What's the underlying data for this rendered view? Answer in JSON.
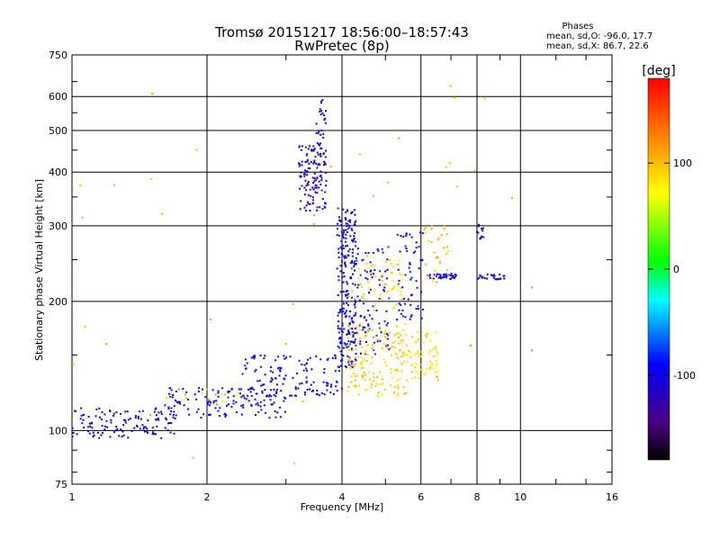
{
  "chart_data": {
    "type": "scatter",
    "title": "Tromsø 20151217 18:56:00–18:57:43",
    "subtitle": "RwPretec (8p)",
    "stats": {
      "heading": "Phases",
      "line_o": "mean, sd,O: -96.0, 17.7",
      "line_x": "mean, sd,X:  86.7, 22.6"
    },
    "xlabel": "Frequency [MHz]",
    "ylabel": "Stationary phase Virtual Height [km]",
    "xscale": "log",
    "yscale": "log",
    "xlim": [
      1,
      16
    ],
    "ylim": [
      75,
      750
    ],
    "x_ticks": [
      1,
      2,
      4,
      6,
      8,
      10,
      16
    ],
    "x_tick_labels": [
      "1",
      "2",
      "4",
      "6",
      "8",
      "10",
      "16"
    ],
    "x_minor_ticks": [
      3,
      5,
      7,
      9,
      12,
      14
    ],
    "y_ticks": [
      75,
      100,
      200,
      300,
      400,
      500,
      600,
      750
    ],
    "y_tick_labels": [
      "75",
      "100",
      "200",
      "300",
      "400",
      "500",
      "600",
      "750"
    ],
    "y_minor_ticks": [
      80,
      90,
      150,
      250,
      350,
      450,
      550,
      650
    ],
    "grid": true,
    "colorbar": {
      "label": "[deg]",
      "range": [
        -180,
        180
      ],
      "ticks": [
        100,
        0,
        -100
      ],
      "tick_labels": [
        "100",
        "0",
        "-100"
      ]
    },
    "series": [
      {
        "clusters": [
          {
            "x": [
              1.0,
              1.7
            ],
            "y": [
              96,
              113
            ],
            "phase": -102,
            "n": 120
          },
          {
            "x": [
              1.6,
              3.0
            ],
            "y": [
              107,
              126
            ],
            "phase": -98,
            "n": 140
          },
          {
            "x": [
              2.4,
              4.0
            ],
            "y": [
              120,
              150
            ],
            "phase": -100,
            "n": 130
          },
          {
            "x": [
              3.2,
              3.7
            ],
            "y": [
              325,
              460
            ],
            "phase": -112,
            "n": 130
          },
          {
            "x": [
              3.5,
              3.7
            ],
            "y": [
              460,
              590
            ],
            "phase": -105,
            "n": 25
          },
          {
            "x": [
              3.9,
              4.3
            ],
            "y": [
              140,
              330
            ],
            "phase": -96,
            "n": 220
          },
          {
            "x": [
              4.2,
              5.1
            ],
            "y": [
              150,
              270
            ],
            "phase": -92,
            "n": 110
          },
          {
            "x": [
              5.3,
              6.1
            ],
            "y": [
              180,
              290
            ],
            "phase": -95,
            "n": 60
          },
          {
            "x": [
              6.2,
              7.2
            ],
            "y": [
              225,
              232
            ],
            "phase": -105,
            "n": 40
          },
          {
            "x": [
              8.0,
              9.4
            ],
            "y": [
              225,
              231
            ],
            "phase": -100,
            "n": 25
          },
          {
            "x": [
              8.0,
              8.4
            ],
            "y": [
              270,
              305
            ],
            "phase": -110,
            "n": 12
          }
        ]
      },
      {
        "clusters": [
          {
            "x": [
              4.1,
              5.6
            ],
            "y": [
              120,
              178
            ],
            "phase": 95,
            "n": 150
          },
          {
            "x": [
              5.3,
              6.6
            ],
            "y": [
              130,
              170
            ],
            "phase": 85,
            "n": 80
          },
          {
            "x": [
              4.2,
              5.5
            ],
            "y": [
              190,
              255
            ],
            "phase": 90,
            "n": 60
          },
          {
            "x": [
              6.1,
              6.9
            ],
            "y": [
              220,
              300
            ],
            "phase": 100,
            "n": 30
          },
          {
            "x": [
              1.6,
              2.4
            ],
            "y": [
              115,
              125
            ],
            "phase": 80,
            "n": 15
          },
          {
            "x": [
              1.0,
              11.0
            ],
            "y": [
              75,
              650
            ],
            "phase": 110,
            "n": 40
          }
        ]
      }
    ]
  }
}
